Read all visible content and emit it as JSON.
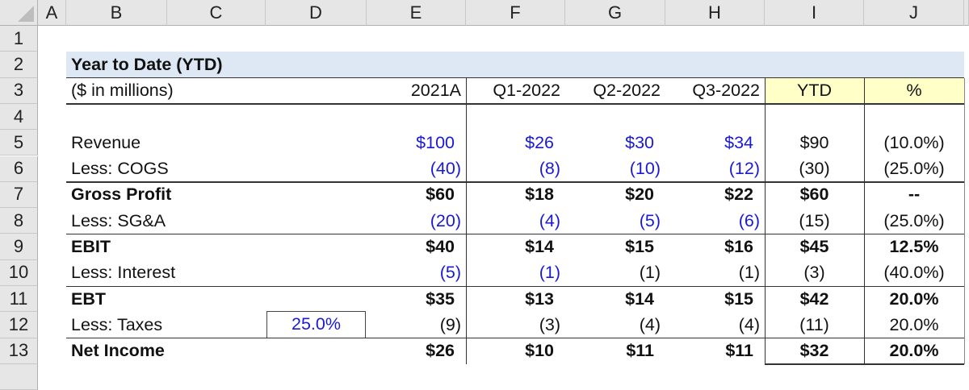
{
  "columns": [
    "A",
    "B",
    "C",
    "D",
    "E",
    "F",
    "G",
    "H",
    "I",
    "J"
  ],
  "row_numbers": [
    "1",
    "2",
    "3",
    "4",
    "5",
    "6",
    "7",
    "8",
    "9",
    "10",
    "11",
    "12",
    "13"
  ],
  "colors": {
    "input_blue": "#1a1ad6",
    "title_band": "#dde8f4",
    "ytd_header_fill": "#ffffc8",
    "text": "#111111"
  },
  "title": "Year to Date (YTD)",
  "header": {
    "label": "($ in millions)",
    "periods": [
      "2021A",
      "Q1-2022",
      "Q2-2022",
      "Q3-2022",
      "YTD",
      "%"
    ]
  },
  "rows": [
    {
      "row": 5,
      "label": "Revenue",
      "bold": false,
      "values": [
        "$100",
        "$26",
        "$30",
        "$34",
        "$90",
        "(10.0%)"
      ],
      "blue": [
        0,
        1,
        2,
        3
      ]
    },
    {
      "row": 6,
      "label": "Less: COGS",
      "bold": false,
      "values": [
        "(40)",
        "(8)",
        "(10)",
        "(12)",
        "(30)",
        "(25.0%)"
      ],
      "blue": [
        0,
        1,
        2,
        3
      ]
    },
    {
      "row": 7,
      "label": "Gross Profit",
      "bold": true,
      "values": [
        "$60",
        "$18",
        "$20",
        "$22",
        "$60",
        "--"
      ],
      "blue": []
    },
    {
      "row": 8,
      "label": "Less: SG&A",
      "bold": false,
      "values": [
        "(20)",
        "(4)",
        "(5)",
        "(6)",
        "(15)",
        "(25.0%)"
      ],
      "blue": [
        0,
        1,
        2,
        3
      ]
    },
    {
      "row": 9,
      "label": "EBIT",
      "bold": true,
      "values": [
        "$40",
        "$14",
        "$15",
        "$16",
        "$45",
        "12.5%"
      ],
      "blue": []
    },
    {
      "row": 10,
      "label": "Less: Interest",
      "bold": false,
      "values": [
        "(5)",
        "(1)",
        "(1)",
        "(1)",
        "(3)",
        "(40.0%)"
      ],
      "blue": [
        0,
        1
      ]
    },
    {
      "row": 11,
      "label": "EBT",
      "bold": true,
      "values": [
        "$35",
        "$13",
        "$14",
        "$15",
        "$42",
        "20.0%"
      ],
      "blue": []
    },
    {
      "row": 12,
      "label": "Less: Taxes",
      "bold": false,
      "values": [
        "(9)",
        "(3)",
        "(4)",
        "(4)",
        "(11)",
        "20.0%"
      ],
      "blue": [],
      "tax_rate": "25.0%"
    },
    {
      "row": 13,
      "label": "Net Income",
      "bold": true,
      "values": [
        "$26",
        "$10",
        "$11",
        "$11",
        "$32",
        "20.0%"
      ],
      "blue": []
    }
  ]
}
